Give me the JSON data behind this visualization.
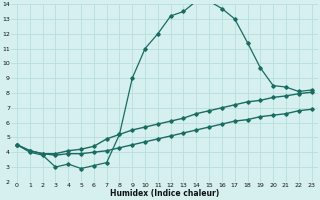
{
  "xlabel": "Humidex (Indice chaleur)",
  "bg_color": "#d6f0f0",
  "grid_color": "#b8dede",
  "line_color": "#1a6b60",
  "xlim": [
    -0.5,
    23.5
  ],
  "ylim": [
    2,
    14
  ],
  "xticks": [
    0,
    1,
    2,
    3,
    4,
    5,
    6,
    7,
    8,
    9,
    10,
    11,
    12,
    13,
    14,
    15,
    16,
    17,
    18,
    19,
    20,
    21,
    22,
    23
  ],
  "yticks": [
    2,
    3,
    4,
    5,
    6,
    7,
    8,
    9,
    10,
    11,
    12,
    13,
    14
  ],
  "curve1_x": [
    0,
    1,
    2,
    3,
    4,
    5,
    6,
    7,
    8,
    9,
    10,
    11,
    12,
    13,
    14,
    15,
    16,
    17,
    18,
    19,
    20,
    21,
    22,
    23
  ],
  "curve1_y": [
    4.5,
    4.0,
    3.8,
    3.0,
    3.2,
    2.9,
    3.1,
    3.3,
    5.2,
    9.0,
    11.0,
    12.0,
    13.2,
    13.5,
    14.2,
    14.2,
    13.7,
    13.0,
    11.4,
    9.7,
    8.5,
    8.4,
    8.1,
    8.2
  ],
  "curve2_x": [
    0,
    1,
    2,
    3,
    4,
    5,
    6,
    7,
    8,
    9,
    10,
    11,
    12,
    13,
    14,
    15,
    16,
    17,
    18,
    19,
    20,
    21,
    22,
    23
  ],
  "curve2_y": [
    4.5,
    4.1,
    3.9,
    3.9,
    4.1,
    4.2,
    4.4,
    4.9,
    5.2,
    5.5,
    5.7,
    5.9,
    6.1,
    6.3,
    6.6,
    6.8,
    7.0,
    7.2,
    7.4,
    7.5,
    7.7,
    7.8,
    7.95,
    8.05
  ],
  "curve3_x": [
    0,
    1,
    2,
    3,
    4,
    5,
    6,
    7,
    8,
    9,
    10,
    11,
    12,
    13,
    14,
    15,
    16,
    17,
    18,
    19,
    20,
    21,
    22,
    23
  ],
  "curve3_y": [
    4.5,
    4.1,
    3.9,
    3.8,
    3.9,
    3.9,
    4.0,
    4.1,
    4.3,
    4.5,
    4.7,
    4.9,
    5.1,
    5.3,
    5.5,
    5.7,
    5.9,
    6.1,
    6.2,
    6.4,
    6.5,
    6.6,
    6.8,
    6.9
  ]
}
